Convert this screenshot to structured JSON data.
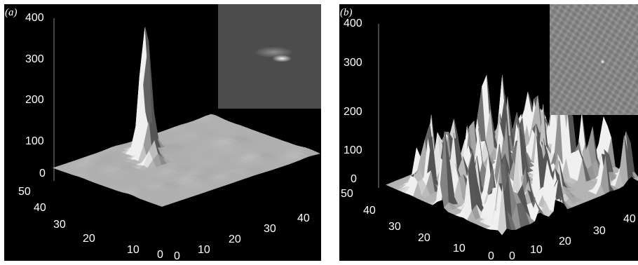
{
  "panel_a": {
    "label": "(a)",
    "z_ticks": [
      "400",
      "300",
      "200",
      "100",
      "0"
    ],
    "y_ticks": [
      "50",
      "40",
      "30",
      "20",
      "10",
      "0"
    ],
    "x_ticks": [
      "0",
      "10",
      "20",
      "30",
      "40"
    ]
  },
  "panel_b": {
    "label": "(b)",
    "z_ticks": [
      "400",
      "300",
      "200",
      "100",
      "0"
    ],
    "y_ticks": [
      "50",
      "40",
      "30",
      "20",
      "10",
      "0"
    ],
    "x_ticks": [
      "0",
      "10",
      "20",
      "30",
      "40"
    ]
  },
  "chart_data": [
    {
      "type": "surface",
      "panel": "a",
      "zlim": [
        0,
        400
      ],
      "xlim": [
        0,
        45
      ],
      "ylim": [
        0,
        50
      ],
      "features": [
        {
          "description_free": true,
          "peak_height": 340,
          "baseline": 10
        }
      ],
      "has_inset_image": true,
      "background": "black"
    },
    {
      "type": "surface",
      "panel": "b",
      "zlim": [
        0,
        400
      ],
      "xlim": [
        0,
        45
      ],
      "ylim": [
        0,
        50
      ],
      "features": [
        {
          "description_free": true,
          "peak_height": 250,
          "baseline": 40
        }
      ],
      "has_inset_image": true,
      "background": "black"
    }
  ],
  "colors": {
    "background": "#000000",
    "surface": "#bfbfbf",
    "text": "#ffffff"
  }
}
